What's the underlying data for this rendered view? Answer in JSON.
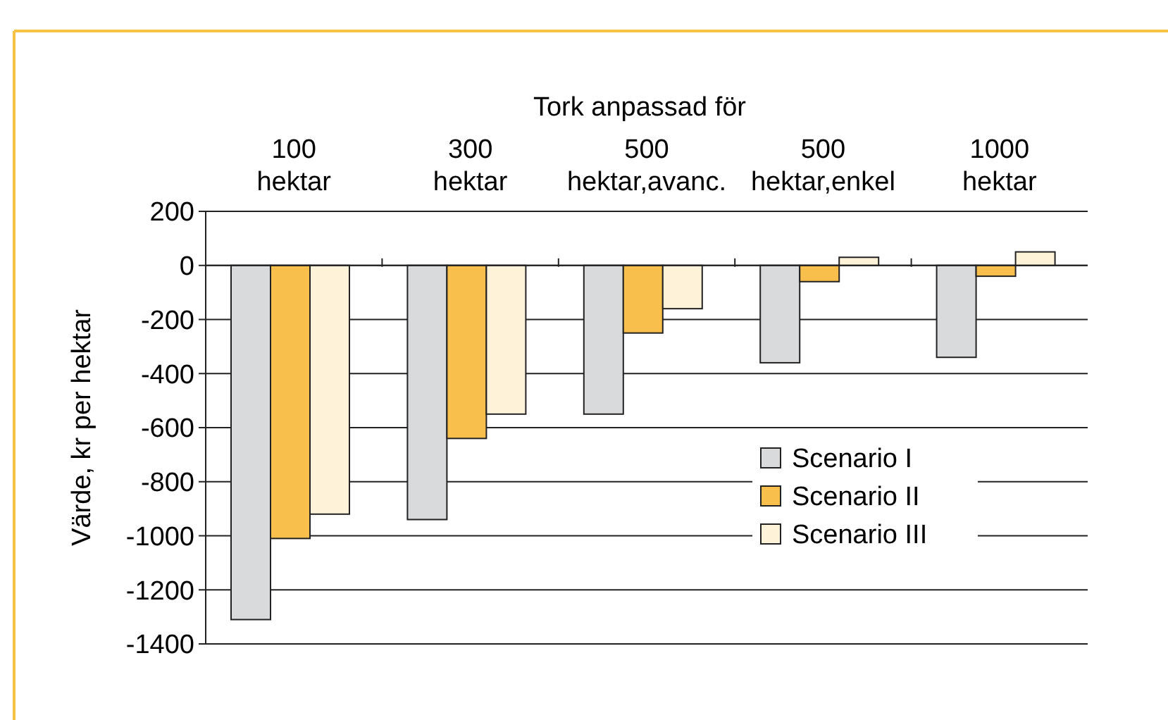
{
  "chart_data": {
    "type": "bar",
    "xlabel": "Tork anpassad för",
    "ylabel": "Värde, kr per hektar",
    "categories": [
      "100\nhektar",
      "300\nhektar",
      "500\nhektar,avanc.",
      "500\nhektar,enkel",
      "1000\nhektar"
    ],
    "series": [
      {
        "name": "Scenario I",
        "color": "#d9dadc",
        "values": [
          -1310,
          -940,
          -550,
          -360,
          -340
        ]
      },
      {
        "name": "Scenario II",
        "color": "#f9bf4c",
        "values": [
          -1010,
          -640,
          -250,
          -60,
          -40
        ]
      },
      {
        "name": "Scenario III",
        "color": "#fef2d8",
        "values": [
          -920,
          -550,
          -160,
          30,
          50
        ]
      }
    ],
    "ylim": [
      -1400,
      200
    ],
    "yticks": [
      200,
      0,
      -200,
      -400,
      -600,
      -800,
      -1000,
      -1200,
      -1400
    ],
    "grid": "y",
    "legend": "right"
  }
}
